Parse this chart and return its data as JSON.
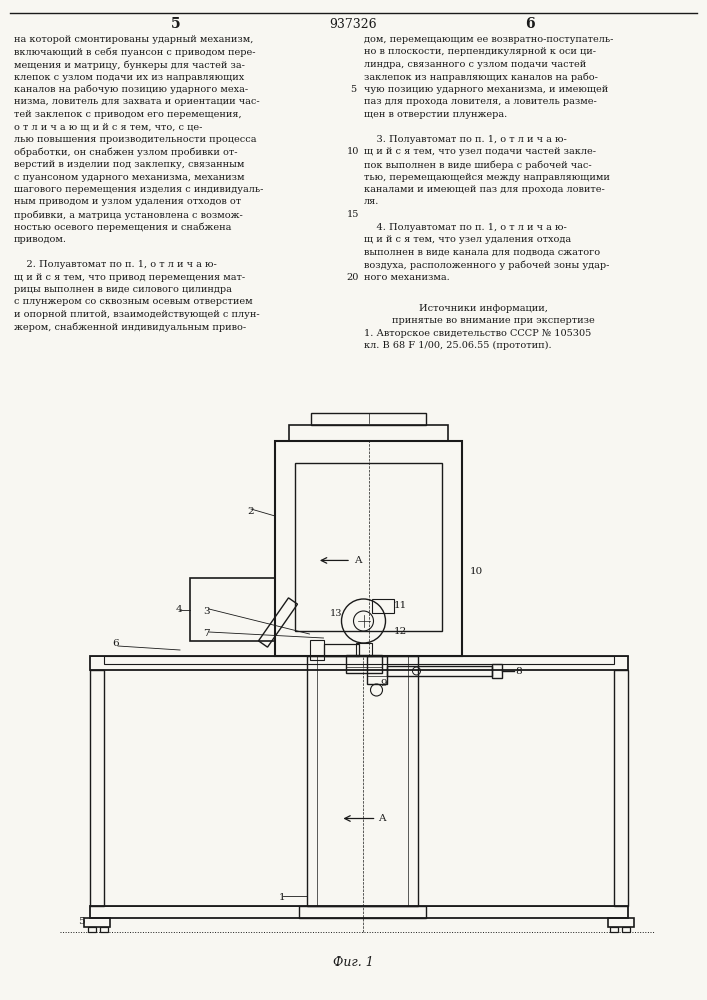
{
  "page_number_left": "5",
  "patent_number": "937326",
  "page_number_right": "6",
  "background_color": "#f8f7f2",
  "text_color": "#1a1a1a",
  "font_size_body": 7.0,
  "col1_main": [
    "на которой смонтированы ударный механизм,",
    "включающий в себя пуансон с приводом пере-",
    "мещения и матрицу, бункеры для частей за-",
    "клепок с узлом подачи их из направляющих",
    "каналов на рабочую позицию ударного меха-",
    "низма, ловитель для захвата и ориентации час-",
    "тей заклепок с приводом его перемещения,",
    "о т л и ч а ю щ и й с я тем, что, с це-",
    "лью повышения производительности процесса",
    "обработки, он снабжен узлом пробивки от-",
    "верстий в изделии под заклепку, связанным",
    "с пуансоном ударного механизма, механизм",
    "шагового перемещения изделия с индивидуаль-",
    "ным приводом и узлом удаления отходов от",
    "пробивки, а матрица установлена с возмож-",
    "ностью осевого перемещения и снабжена",
    "приводом."
  ],
  "col1_para2": [
    "    2. Полуавтомат по п. 1, о т л и ч а ю-",
    "щ и й с я тем, что привод перемещения мат-",
    "рицы выполнен в виде силового цилиндра",
    "с плунжером со сквозным осевым отверстием",
    "и опорной плитой, взаимодействующей с плун-",
    "жером, снабженной индивидуальным приво-"
  ],
  "col2_para1": [
    "дом, перемещающим ее возвратно-поступатель-",
    "но в плоскости, перпендикулярной к оси ци-",
    "линдра, связанного с узлом подачи частей",
    "заклепок из направляющих каналов на рабо-",
    "чую позицию ударного механизма, и имеющей",
    "паз для прохода ловителя, а ловитель разме-",
    "щен в отверстии плунжера."
  ],
  "col2_para2": [
    "    3. Полуавтомат по п. 1, о т л и ч а ю-",
    "щ и й с я тем, что узел подачи частей закле-",
    "пок выполнен в виде шибера с рабочей час-",
    "тью, перемещающейся между направляющими",
    "каналами и имеющей паз для прохода ловите-",
    "ля."
  ],
  "col2_para3": [
    "    4. Полуавтомат по п. 1, о т л и ч а ю-",
    "щ и й с я тем, что узел удаления отхода",
    "выполнен в виде канала для подвода сжатого",
    "воздуха, расположенного у рабочей зоны удар-",
    "ного механизма."
  ],
  "col2_src_h1": "Источники информации,",
  "col2_src_h2": "принятые во внимание при экспертизе",
  "col2_src_b": [
    "1. Авторское свидетельство СССР № 105305",
    "кл. В 68 F 1/00, 25.06.55 (прототип)."
  ],
  "caption": "Фиг. 1",
  "line_numbers": {
    "5": 4,
    "10": 9,
    "15": 14,
    "20": 19
  }
}
